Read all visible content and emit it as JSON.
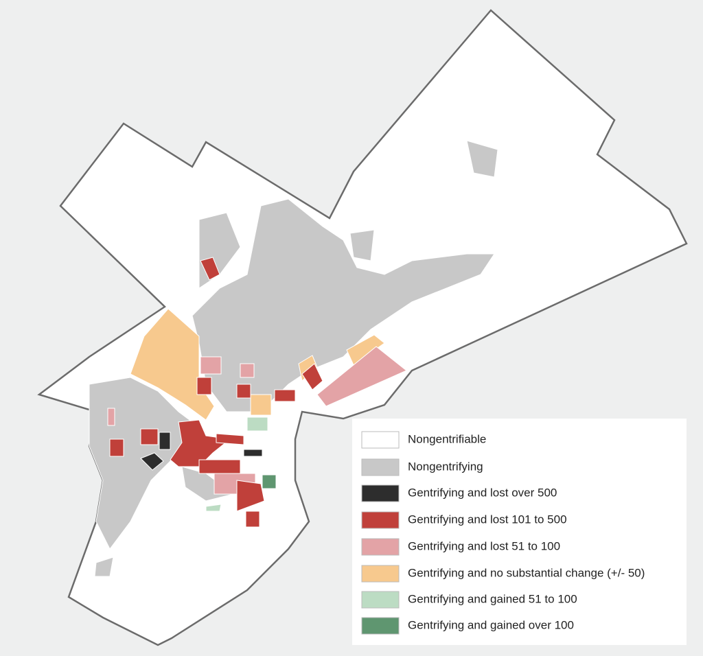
{
  "legend": {
    "items": [
      {
        "label": "Nongentrifiable",
        "color": "#ffffff"
      },
      {
        "label": "Nongentrifying",
        "color": "#c8c8c8"
      },
      {
        "label": "Gentrifying and lost over 500",
        "color": "#2d2d2d"
      },
      {
        "label": "Gentrifying and lost 101 to 500",
        "color": "#c0403a"
      },
      {
        "label": "Gentrifying and lost 51 to 100",
        "color": "#e3a3a6"
      },
      {
        "label": "Gentrifying and no substantial change (+/- 50)",
        "color": "#f7c98e"
      },
      {
        "label": "Gentrifying and gained 51 to 100",
        "color": "#bcdcc3"
      },
      {
        "label": "Gentrifying and gained over 100",
        "color": "#5f9670"
      }
    ]
  }
}
